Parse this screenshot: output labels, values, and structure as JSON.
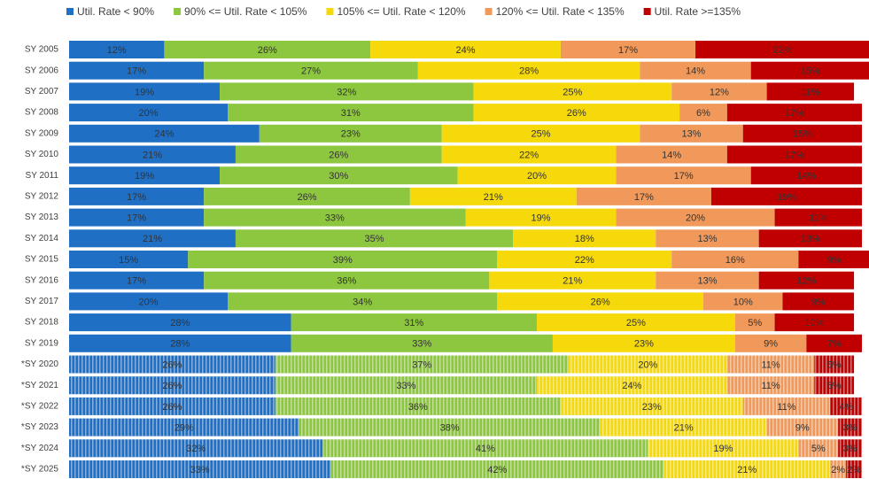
{
  "chart_data": {
    "type": "stacked_barh",
    "categories": [
      "SY 2005",
      "SY 2006",
      "SY 2007",
      "SY 2008",
      "SY 2009",
      "SY 2010",
      "SY 2011",
      "SY 2012",
      "SY 2013",
      "SY 2014",
      "SY 2015",
      "SY 2016",
      "SY 2017",
      "SY 2018",
      "SY 2019",
      "*SY 2020",
      "*SY 2021",
      "*SY 2022",
      "*SY 2023",
      "*SY 2024",
      "*SY 2025"
    ],
    "hatched": [
      false,
      false,
      false,
      false,
      false,
      false,
      false,
      false,
      false,
      false,
      false,
      false,
      false,
      false,
      false,
      true,
      true,
      true,
      true,
      true,
      true
    ],
    "xlim": [
      0,
      100
    ],
    "legend": "top",
    "series": [
      {
        "name": "Util. Rate < 90%",
        "color": "#1f6fc5",
        "values": [
          12,
          17,
          19,
          20,
          24,
          21,
          19,
          17,
          17,
          21,
          15,
          17,
          20,
          28,
          28,
          26,
          26,
          26,
          29,
          32,
          33
        ],
        "value_labels": [
          "12%",
          "17%",
          "19%",
          "20%",
          "24%",
          "21%",
          "19%",
          "17%",
          "17%",
          "21%",
          "15%",
          "17%",
          "20%",
          "28%",
          "28%",
          "26%",
          "26%",
          "26%",
          "29%",
          "32%",
          "33%"
        ]
      },
      {
        "name": "90% <= Util. Rate < 105%",
        "color": "#8dc63f",
        "values": [
          26,
          27,
          32,
          31,
          23,
          26,
          30,
          26,
          33,
          35,
          39,
          36,
          34,
          31,
          33,
          37,
          33,
          36,
          38,
          41,
          42
        ],
        "value_labels": [
          "26%",
          "27%",
          "32%",
          "31%",
          "23%",
          "26%",
          "30%",
          "26%",
          "33%",
          "35%",
          "39%",
          "36%",
          "34%",
          "31%",
          "33%",
          "37%",
          "33%",
          "36%",
          "38%",
          "41%",
          "42%"
        ]
      },
      {
        "name": "105% <= Util. Rate < 120%",
        "color": "#f5d90a",
        "values": [
          24,
          28,
          25,
          26,
          25,
          22,
          20,
          21,
          19,
          18,
          22,
          21,
          26,
          25,
          23,
          20,
          24,
          23,
          21,
          19,
          21
        ],
        "value_labels": [
          "24%",
          "28%",
          "25%",
          "26%",
          "25%",
          "22%",
          "20%",
          "21%",
          "19%",
          "18%",
          "22%",
          "21%",
          "26%",
          "25%",
          "23%",
          "20%",
          "24%",
          "23%",
          "21%",
          "19%",
          "21%"
        ]
      },
      {
        "name": "120% <= Util. Rate < 135%",
        "color": "#f0995a",
        "values": [
          17,
          14,
          12,
          6,
          13,
          14,
          17,
          17,
          20,
          13,
          16,
          13,
          10,
          5,
          9,
          11,
          11,
          11,
          9,
          5,
          2
        ],
        "value_labels": [
          "17%",
          "14%",
          "12%",
          "6%",
          "13%",
          "14%",
          "17%",
          "17%",
          "20%",
          "13%",
          "16%",
          "13%",
          "10%",
          "5%",
          "9%",
          "11%",
          "11%",
          "11%",
          "9%",
          "5%",
          "2%"
        ]
      },
      {
        "name": "Util. Rate >=135%",
        "color": "#c00000",
        "values": [
          22,
          15,
          11,
          17,
          15,
          17,
          14,
          19,
          11,
          13,
          9,
          12,
          9,
          10,
          7,
          5,
          5,
          4,
          3,
          3,
          2
        ],
        "value_labels": [
          "22%",
          "15%",
          "11%",
          "17%",
          "15%",
          "17%",
          "14%",
          "19%",
          "11%",
          "13%",
          "9%",
          "12%",
          "9%",
          "10%",
          "7%",
          "5%",
          "5%",
          "4%",
          "3%",
          "3%",
          "2%"
        ]
      }
    ]
  }
}
